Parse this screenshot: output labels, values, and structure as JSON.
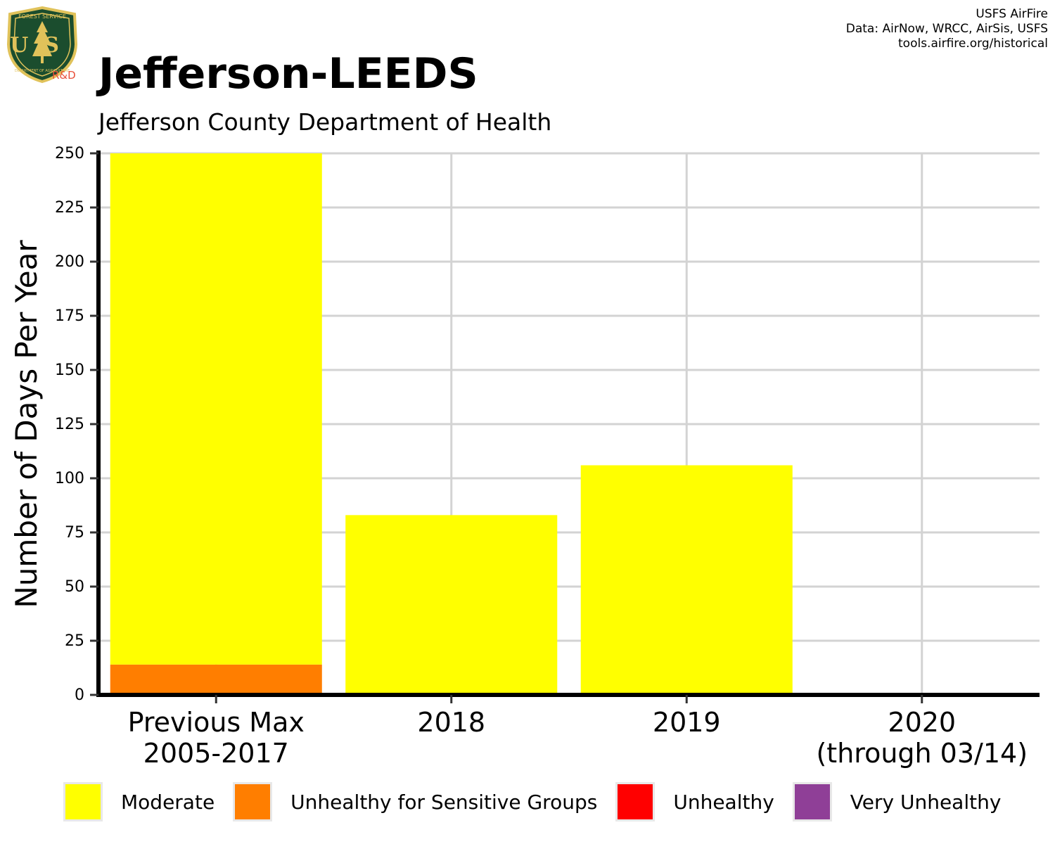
{
  "header": {
    "title": "Jefferson-LEEDS",
    "subtitle": "Jefferson County Department of Health",
    "credits": [
      "USFS AirFire",
      "Data: AirNow, WRCC, AirSis, USFS",
      "tools.airfire.org/historical"
    ]
  },
  "logo": {
    "icon": "forest-service-shield-icon",
    "top_text": "FOREST SERVICE",
    "main_text": "US",
    "bottom_text": "DEPARTMENT OF AGRICULTURE",
    "badge_text": "R&D",
    "colors": {
      "shield": "#1b4d2e",
      "trim": "#e0c25a",
      "badge": "#e8503a"
    }
  },
  "colors": {
    "Moderate": "#ffff00",
    "Unhealthy for Sensitive Groups": "#ff7e00",
    "Unhealthy": "#ff0000",
    "Very Unhealthy": "#8f3f97",
    "grid": "#d3d3d3",
    "axis": "#000000"
  },
  "chart_data": {
    "type": "bar",
    "stacked": true,
    "categories": [
      [
        "Previous Max",
        "2005-2017"
      ],
      [
        "2018"
      ],
      [
        "2019"
      ],
      [
        "2020",
        "(through 03/14)"
      ]
    ],
    "series": [
      {
        "name": "Moderate",
        "values": [
          236,
          83,
          106,
          0
        ]
      },
      {
        "name": "Unhealthy for Sensitive Groups",
        "values": [
          14,
          0,
          0,
          0
        ]
      },
      {
        "name": "Unhealthy",
        "values": [
          0,
          0,
          0,
          0
        ]
      },
      {
        "name": "Very Unhealthy",
        "values": [
          0,
          0,
          0,
          0
        ]
      }
    ],
    "stack_order": [
      "Unhealthy for Sensitive Groups",
      "Moderate"
    ],
    "ylabel": "Number of Days Per Year",
    "xlabel": "",
    "ylim": [
      0,
      250
    ],
    "yticks": [
      0,
      25,
      50,
      75,
      100,
      125,
      150,
      175,
      200,
      225,
      250
    ],
    "grid": true,
    "legend_position": "bottom"
  }
}
